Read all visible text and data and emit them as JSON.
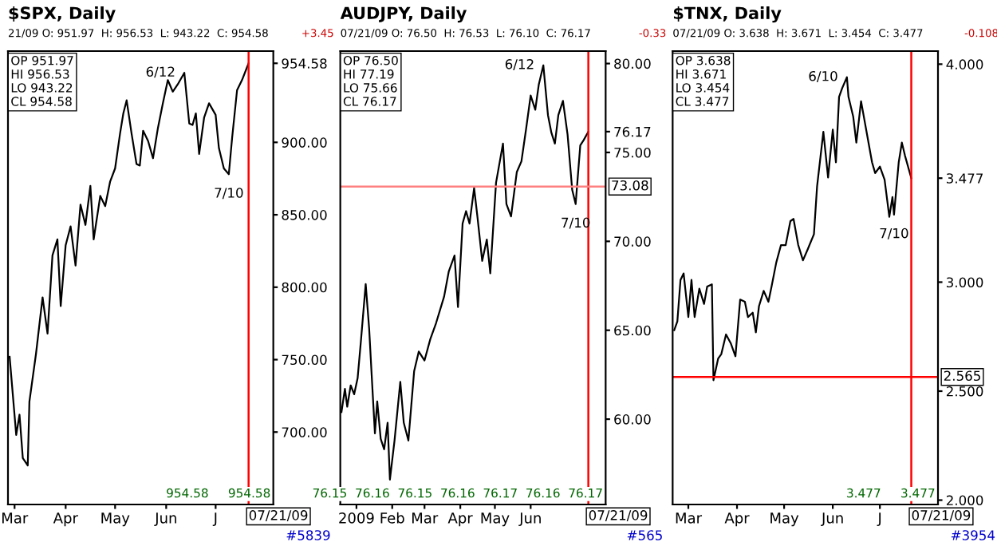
{
  "chart_data": [
    {
      "type": "line",
      "title": "$SPX, Daily",
      "subtitle": "21/09 O: 951.97  H: 956.53  L: 943.22  C: 954.58",
      "annotations": [
        "OP 951.97\nHI 956.53\nLO 943.22\nCL 954.58",
        "+3.45",
        "954.58     954.58",
        "#5839",
        {
          "text": "6/12",
          "x": "2009-06-12",
          "y": 948
        },
        {
          "text": "7/10",
          "x": "2009-07-09",
          "y": 878
        }
      ],
      "series": [
        {
          "color": "#000000",
          "x": [
            "2009-02-26",
            "2009-03-02",
            "2009-03-04",
            "2009-03-06",
            "2009-03-09",
            "2009-03-10",
            "2009-03-14",
            "2009-03-18",
            "2009-03-21",
            "2009-03-24",
            "2009-03-27",
            "2009-03-29",
            "2009-04-01",
            "2009-04-04",
            "2009-04-07",
            "2009-04-10",
            "2009-04-13",
            "2009-04-16",
            "2009-04-18",
            "2009-04-22",
            "2009-04-25",
            "2009-04-28",
            "2009-05-01",
            "2009-05-04",
            "2009-05-06",
            "2009-05-08",
            "2009-05-11",
            "2009-05-14",
            "2009-05-16",
            "2009-05-18",
            "2009-05-21",
            "2009-05-24",
            "2009-05-27",
            "2009-05-30",
            "2009-06-02",
            "2009-06-05",
            "2009-06-08",
            "2009-06-12",
            "2009-06-15",
            "2009-06-17",
            "2009-06-19",
            "2009-06-21",
            "2009-06-24",
            "2009-06-27",
            "2009-07-01",
            "2009-07-03",
            "2009-07-06",
            "2009-07-09",
            "2009-07-11",
            "2009-07-14",
            "2009-07-17",
            "2009-07-21"
          ],
          "values": [
            752,
            698,
            712,
            682,
            677,
            721,
            754,
            793,
            768,
            822,
            833,
            787,
            829,
            842,
            815,
            857,
            843,
            870,
            833,
            863,
            856,
            873,
            882,
            906,
            920,
            929,
            906,
            885,
            884,
            908,
            901,
            889,
            910,
            927,
            943,
            935,
            940,
            948,
            913,
            912,
            920,
            892,
            917,
            927,
            919,
            896,
            882,
            878,
            903,
            936,
            943,
            954.58
          ]
        }
      ],
      "xlim": [
        "2009-02-25",
        "2009-08-05"
      ],
      "ylim": [
        650,
        963
      ],
      "xticks": [
        {
          "value": "2009-03-01",
          "label": "Mar"
        },
        {
          "value": "2009-04-01",
          "label": "Apr"
        },
        {
          "value": "2009-05-01",
          "label": "May"
        },
        {
          "value": "2009-06-01",
          "label": "Jun"
        },
        {
          "value": "2009-07-01",
          "label": "J"
        }
      ],
      "yticks": [
        {
          "value": 700,
          "label": "700.00"
        },
        {
          "value": 750,
          "label": "750.00"
        },
        {
          "value": 800,
          "label": "800.00"
        },
        {
          "value": 850,
          "label": "850.00"
        },
        {
          "value": 900,
          "label": "900.00"
        },
        {
          "value": 954.58,
          "label": "954.58"
        }
      ],
      "ref_lines": [
        {
          "axis": "x",
          "value": "2009-07-21",
          "label": "07/21/09",
          "color": "#ff0000"
        }
      ]
    },
    {
      "type": "line",
      "title": "AUDJPY, Daily",
      "subtitle": "07/21/09 O: 76.50  H: 76.53  L: 76.10  C: 76.17",
      "annotations": [
        "OP 76.50\nHI 77.19\nLO 75.66\nCL 76.17",
        "-0.33",
        "76.15  76.16  76.15  76.16  76.17  76.16  76.17",
        "#565",
        {
          "text": "6/12",
          "x": "2009-06-12",
          "y": 79.9
        },
        {
          "text": "7/10",
          "x": "2009-07-10",
          "y": 72.1
        }
      ],
      "series": [
        {
          "color": "#000000",
          "x": [
            "2008-12-19",
            "2008-12-22",
            "2008-12-24",
            "2008-12-27",
            "2008-12-30",
            "2009-01-02",
            "2009-01-05",
            "2009-01-09",
            "2009-01-12",
            "2009-01-14",
            "2009-01-17",
            "2009-01-19",
            "2009-01-22",
            "2009-01-25",
            "2009-01-28",
            "2009-01-30",
            "2009-02-03",
            "2009-02-08",
            "2009-02-11",
            "2009-02-15",
            "2009-02-20",
            "2009-02-24",
            "2009-03-01",
            "2009-03-06",
            "2009-03-11",
            "2009-03-18",
            "2009-03-22",
            "2009-03-27",
            "2009-03-30",
            "2009-04-03",
            "2009-04-06",
            "2009-04-09",
            "2009-04-13",
            "2009-04-16",
            "2009-04-20",
            "2009-04-24",
            "2009-04-27",
            "2009-05-02",
            "2009-05-08",
            "2009-05-11",
            "2009-05-15",
            "2009-05-20",
            "2009-05-24",
            "2009-05-28",
            "2009-06-01",
            "2009-06-05",
            "2009-06-08",
            "2009-06-12",
            "2009-06-16",
            "2009-06-19",
            "2009-06-22",
            "2009-06-25",
            "2009-06-29",
            "2009-07-03",
            "2009-07-07",
            "2009-07-10",
            "2009-07-14",
            "2009-07-17",
            "2009-07-21"
          ],
          "values": [
            60.4,
            61.7,
            60.7,
            61.9,
            61.4,
            62.3,
            64.5,
            67.6,
            65.1,
            62.7,
            59.2,
            61.0,
            58.9,
            58.3,
            59.8,
            56.6,
            58.8,
            62.1,
            59.8,
            58.8,
            62.7,
            63.8,
            63.3,
            64.5,
            65.4,
            66.9,
            68.3,
            69.2,
            66.3,
            71.0,
            71.7,
            71.0,
            73.0,
            71.3,
            68.9,
            70.1,
            68.2,
            73.3,
            75.5,
            72.1,
            71.4,
            73.9,
            74.5,
            76.3,
            78.2,
            77.4,
            78.8,
            79.9,
            77.1,
            76.1,
            75.5,
            77.1,
            77.9,
            76.0,
            72.9,
            72.1,
            75.4,
            75.7,
            76.17
          ]
        }
      ],
      "xlim": [
        "2008-12-18",
        "2009-08-05"
      ],
      "ylim": [
        55.2,
        80.7
      ],
      "xticks": [
        {
          "value": "2009-01-01",
          "label": "2009"
        },
        {
          "value": "2009-02-01",
          "label": "Feb"
        },
        {
          "value": "2009-03-01",
          "label": "Mar"
        },
        {
          "value": "2009-04-01",
          "label": "Apr"
        },
        {
          "value": "2009-05-01",
          "label": "May"
        },
        {
          "value": "2009-06-01",
          "label": "Jun"
        }
      ],
      "yticks": [
        {
          "value": 60,
          "label": "60.00"
        },
        {
          "value": 65,
          "label": "65.00"
        },
        {
          "value": 70,
          "label": "70.00"
        },
        {
          "value": 75,
          "label": "75.00"
        },
        {
          "value": 76.17,
          "label": "76.17"
        },
        {
          "value": 80,
          "label": "80.00"
        }
      ],
      "ref_lines": [
        {
          "axis": "x",
          "value": "2009-07-21",
          "label": "07/21/09",
          "color": "#ff0000"
        },
        {
          "axis": "y",
          "value": 73.08,
          "label": "73.08",
          "color": "#ff8080"
        }
      ]
    },
    {
      "type": "line",
      "title": "$TNX, Daily",
      "subtitle": "07/21/09 O: 3.638  H: 3.671  L: 3.454  C: 3.477",
      "annotations": [
        "OP 3.638\nHI 3.671\nLO 3.454\nCL 3.477",
        "-0.108",
        "3.477     3.477",
        "#3954",
        {
          "text": "6/10",
          "x": "2009-06-10",
          "y": 3.94
        },
        {
          "text": "7/10",
          "x": "2009-07-10",
          "y": 3.31
        }
      ],
      "series": [
        {
          "color": "#000000",
          "x": [
            "2009-02-20",
            "2009-02-22",
            "2009-02-24",
            "2009-02-26",
            "2009-03-01",
            "2009-03-03",
            "2009-03-05",
            "2009-03-08",
            "2009-03-11",
            "2009-03-13",
            "2009-03-16",
            "2009-03-17",
            "2009-03-20",
            "2009-03-22",
            "2009-03-25",
            "2009-03-28",
            "2009-03-31",
            "2009-04-03",
            "2009-04-06",
            "2009-04-08",
            "2009-04-11",
            "2009-04-13",
            "2009-04-15",
            "2009-04-18",
            "2009-04-21",
            "2009-04-23",
            "2009-04-26",
            "2009-04-29",
            "2009-05-02",
            "2009-05-05",
            "2009-05-07",
            "2009-05-10",
            "2009-05-13",
            "2009-05-16",
            "2009-05-20",
            "2009-05-22",
            "2009-05-26",
            "2009-05-29",
            "2009-06-01",
            "2009-06-03",
            "2009-06-05",
            "2009-06-07",
            "2009-06-10",
            "2009-06-11",
            "2009-06-14",
            "2009-06-16",
            "2009-06-19",
            "2009-06-21",
            "2009-06-23",
            "2009-06-26",
            "2009-06-28",
            "2009-07-01",
            "2009-07-04",
            "2009-07-07",
            "2009-07-09",
            "2009-07-10",
            "2009-07-13",
            "2009-07-15",
            "2009-07-17",
            "2009-07-21"
          ],
          "values": [
            2.78,
            2.82,
            3.01,
            3.04,
            2.84,
            3.01,
            2.84,
            2.97,
            2.9,
            2.98,
            2.99,
            2.55,
            2.65,
            2.67,
            2.76,
            2.72,
            2.66,
            2.92,
            2.91,
            2.84,
            2.86,
            2.77,
            2.89,
            2.96,
            2.91,
            2.98,
            3.09,
            3.17,
            3.17,
            3.28,
            3.29,
            3.17,
            3.1,
            3.15,
            3.22,
            3.44,
            3.69,
            3.48,
            3.7,
            3.55,
            3.85,
            3.89,
            3.94,
            3.85,
            3.76,
            3.64,
            3.83,
            3.75,
            3.67,
            3.55,
            3.5,
            3.53,
            3.47,
            3.3,
            3.39,
            3.31,
            3.55,
            3.64,
            3.58,
            3.477
          ]
        }
      ],
      "xlim": [
        "2009-02-19",
        "2009-08-07"
      ],
      "ylim": [
        1.98,
        4.06
      ],
      "xticks": [
        {
          "value": "2009-03-01",
          "label": "Mar"
        },
        {
          "value": "2009-04-01",
          "label": "Apr"
        },
        {
          "value": "2009-05-01",
          "label": "May"
        },
        {
          "value": "2009-06-01",
          "label": "Jun"
        },
        {
          "value": "2009-07-01",
          "label": "J"
        }
      ],
      "yticks": [
        {
          "value": 2,
          "label": "2.000"
        },
        {
          "value": 2.5,
          "label": "2.500"
        },
        {
          "value": 3,
          "label": "3.000"
        },
        {
          "value": 3.477,
          "label": "3.477"
        },
        {
          "value": 4,
          "label": "4.000"
        }
      ],
      "ref_lines": [
        {
          "axis": "x",
          "value": "2009-07-21",
          "label": "07/21/09",
          "color": "#ff0000"
        },
        {
          "axis": "y",
          "value": 2.565,
          "label": "2.565",
          "color": "#ff0000"
        }
      ]
    }
  ]
}
